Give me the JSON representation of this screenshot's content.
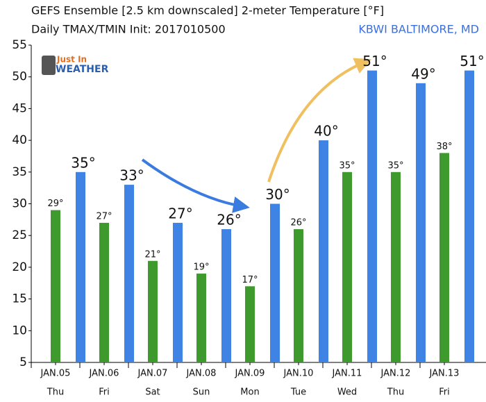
{
  "chart_data": {
    "type": "bar",
    "title": "GEFS Ensemble [2.5 km downscaled] 2-meter Temperature [°F]",
    "subtitle": "Daily TMAX/TMIN Init: 2017010500",
    "location": "KBWI BALTIMORE, MD",
    "logo": [
      "Just In",
      "WEATHER"
    ],
    "categories": [
      "JAN.05",
      "JAN.06",
      "JAN.07",
      "JAN.08",
      "JAN.09",
      "JAN.10",
      "JAN.11",
      "JAN.12",
      "JAN.13"
    ],
    "days": [
      "Thu",
      "Fri",
      "Sat",
      "Sun",
      "Mon",
      "Tue",
      "Wed",
      "Thu",
      "Fri"
    ],
    "series": [
      {
        "color": "#3f9a2e",
        "values": [
          29,
          27,
          21,
          19,
          17,
          26,
          35,
          35,
          38
        ],
        "value_labels": [
          "29°",
          "27°",
          "21°",
          "19°",
          "17°",
          "26°",
          "35°",
          "35°",
          "38°"
        ]
      },
      {
        "color": "#3f84e5",
        "values": [
          35,
          33,
          27,
          26,
          30,
          40,
          51,
          49,
          51
        ],
        "value_labels": [
          "35°",
          "33°",
          "27°",
          "26°",
          "30°",
          "40°",
          "51°",
          "49°",
          "51°"
        ]
      }
    ],
    "ylim": [
      5,
      55
    ],
    "yticks": [
      5,
      10,
      15,
      20,
      25,
      30,
      35,
      40,
      45,
      50,
      55
    ],
    "grid": false
  }
}
